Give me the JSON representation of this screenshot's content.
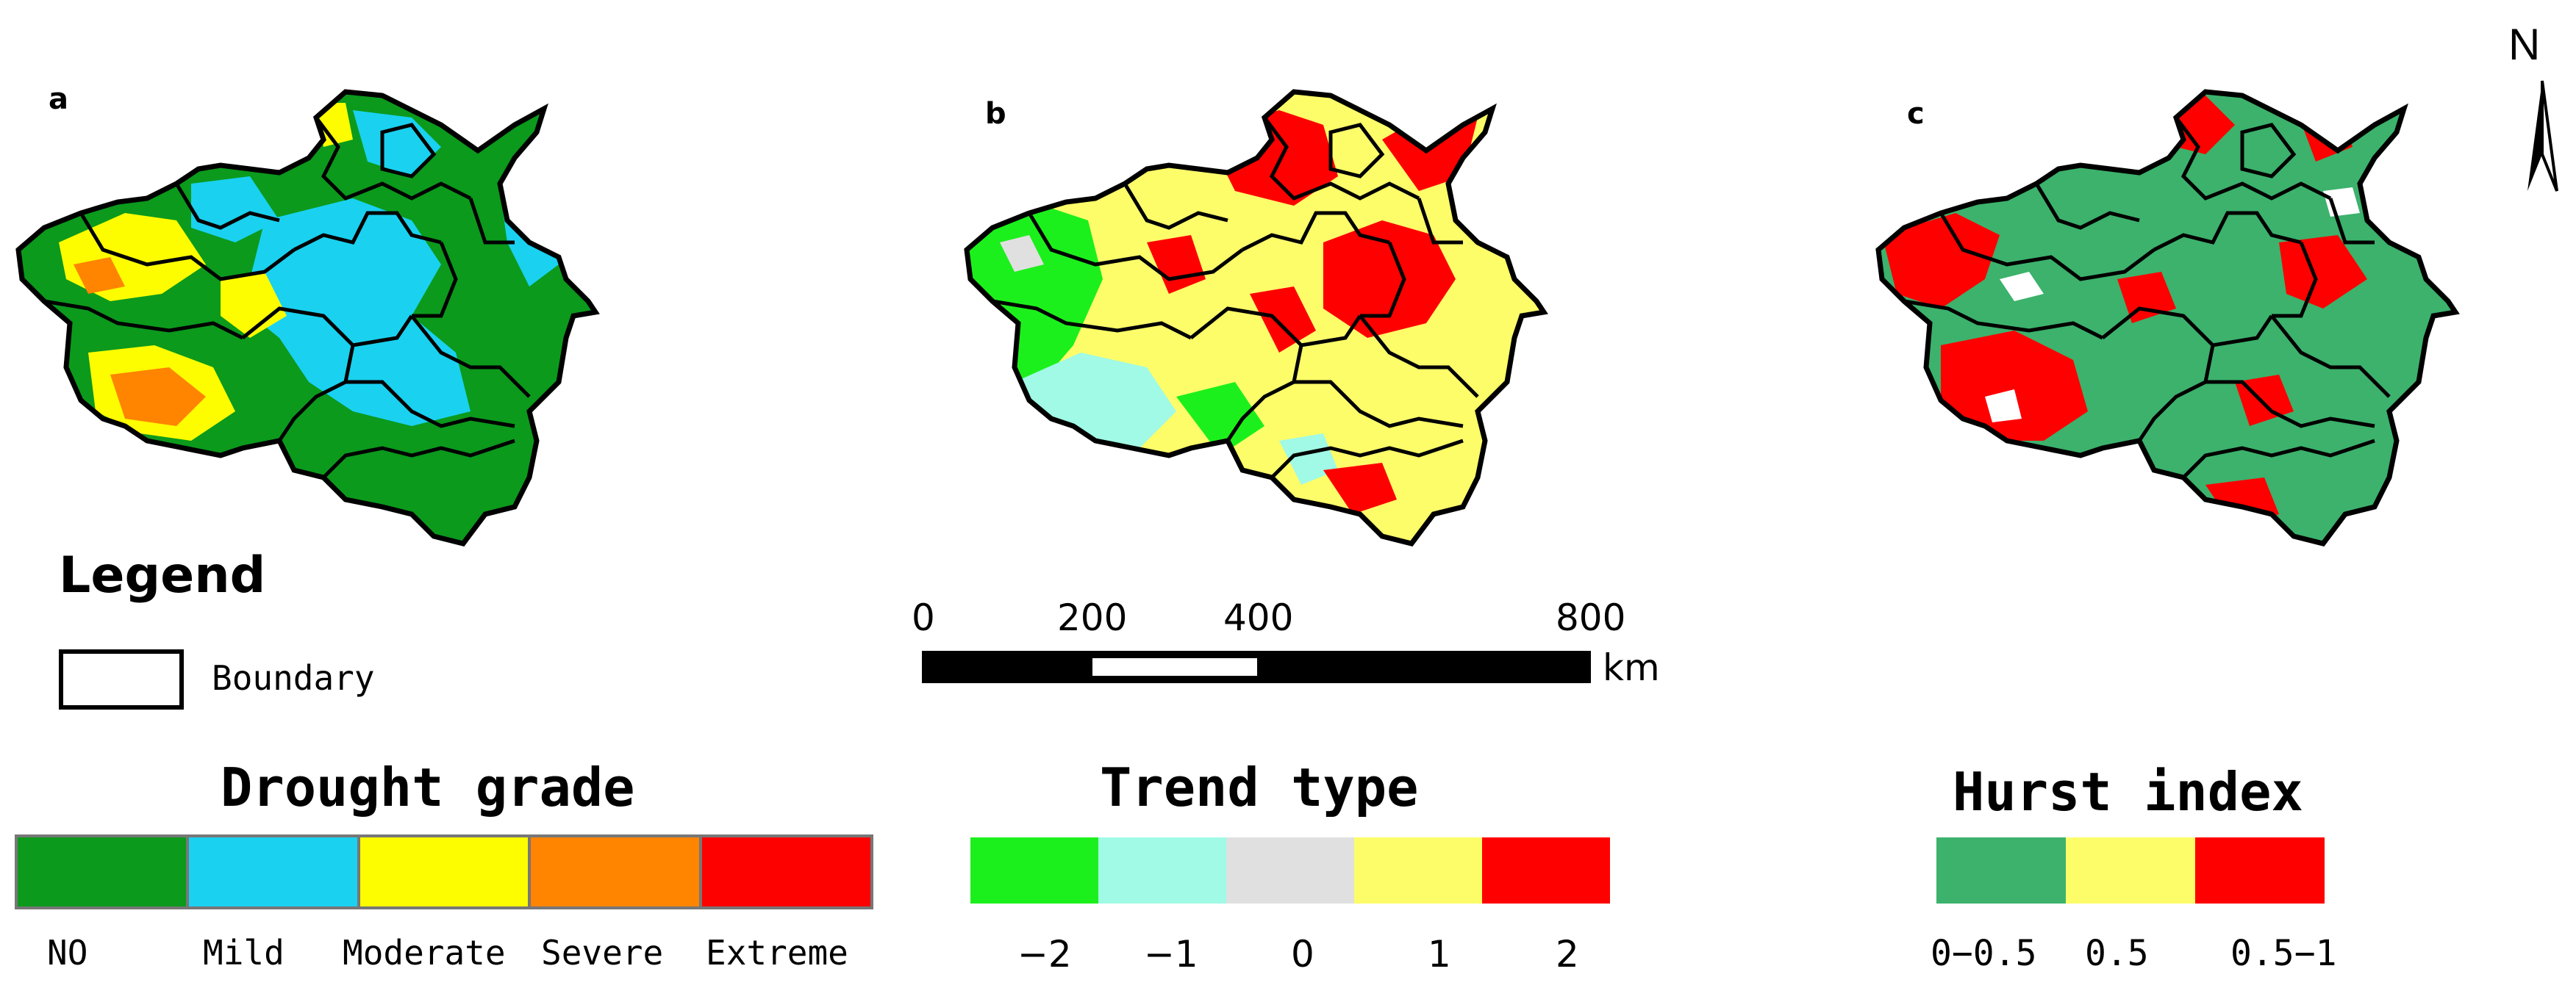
{
  "panels": [
    {
      "letter": "a"
    },
    {
      "letter": "b"
    },
    {
      "letter": "c"
    }
  ],
  "north_label": "N",
  "legend": {
    "title": "Legend",
    "boundary_label": "Boundary"
  },
  "scale_bar": {
    "ticks": [
      "0",
      "200",
      "400",
      "800"
    ],
    "unit": "km"
  },
  "drought_legend": {
    "title": "Drought grade",
    "classes": [
      {
        "label": "NO",
        "color": "#0b9a1c"
      },
      {
        "label": "Mild",
        "color": "#1ad1f0"
      },
      {
        "label": "Moderate",
        "color": "#fdfd00"
      },
      {
        "label": "Severe",
        "color": "#ff8400"
      },
      {
        "label": "Extreme",
        "color": "#fd0000"
      }
    ]
  },
  "trend_legend": {
    "title": "Trend type",
    "classes": [
      {
        "label": "−2",
        "color": "#1cf01c"
      },
      {
        "label": "−1",
        "color": "#a0fae5"
      },
      {
        "label": "0",
        "color": "#e0e0e0"
      },
      {
        "label": "1",
        "color": "#fdfd6a"
      },
      {
        "label": "2",
        "color": "#ff0000"
      }
    ]
  },
  "hurst_legend": {
    "title": "Hurst index",
    "classes": [
      {
        "label": "0−0.5",
        "color": "#3cb26c"
      },
      {
        "label": "0.5",
        "color": "#fdfd6a"
      },
      {
        "label": "0.5−1",
        "color": "#ff0000"
      }
    ]
  }
}
